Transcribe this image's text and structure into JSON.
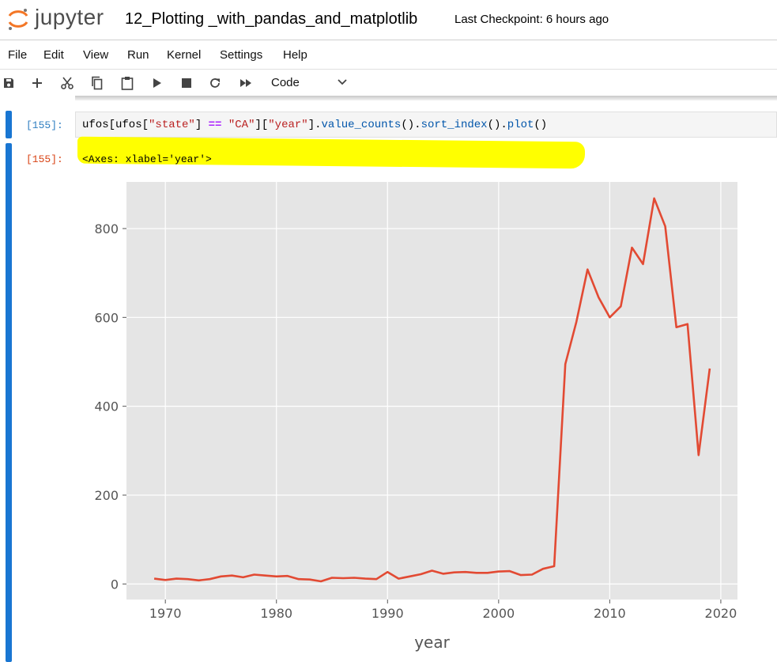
{
  "header": {
    "logo_text": "jupyter",
    "notebook_title": "12_Plotting _with_pandas_and_matplotlib",
    "checkpoint": "Last Checkpoint: 6 hours ago"
  },
  "menu": [
    "File",
    "Edit",
    "View",
    "Run",
    "Kernel",
    "Settings",
    "Help"
  ],
  "toolbar": {
    "icons": [
      "save-icon",
      "add-icon",
      "cut-icon",
      "copy-icon",
      "paste-icon",
      "run-icon",
      "stop-icon",
      "restart-icon",
      "run-all-icon"
    ],
    "cell_type": "Code"
  },
  "cell": {
    "in_prompt": "[155]:",
    "out_prompt": "[155]:",
    "code": {
      "p1": "ufos[ufos[",
      "s1": "\"state\"",
      "p2": "] ",
      "op": "==",
      "p3": " ",
      "s2": "\"CA\"",
      "p4": "][",
      "s3": "\"year\"",
      "p5": "].",
      "f1": "value_counts",
      "p6": "().",
      "f2": "sort_index",
      "p7": "().",
      "f3": "plot",
      "p8": "()"
    },
    "output_text": "<Axes: xlabel='year'>"
  },
  "colors": {
    "line": "#e24a33",
    "plot_bg": "#e5e5e5",
    "grid": "#ffffff",
    "highlight": "#ffff00",
    "cell_bar": "#1976d2"
  },
  "chart_data": {
    "type": "line",
    "title": "",
    "xlabel": "year",
    "ylabel": "",
    "xlim": [
      1966.5,
      2021.5
    ],
    "ylim": [
      -35,
      905
    ],
    "xticks": [
      1970,
      1980,
      1990,
      2000,
      2010,
      2020
    ],
    "yticks": [
      0,
      200,
      400,
      600,
      800
    ],
    "grid": true,
    "x": [
      1969,
      1970,
      1971,
      1972,
      1973,
      1974,
      1975,
      1976,
      1977,
      1978,
      1979,
      1980,
      1981,
      1982,
      1983,
      1984,
      1985,
      1986,
      1987,
      1988,
      1989,
      1990,
      1991,
      1992,
      1993,
      1994,
      1995,
      1996,
      1997,
      1998,
      1999,
      2000,
      2001,
      2002,
      2003,
      2004,
      2005,
      2006,
      2007,
      2008,
      2009,
      2010,
      2011,
      2012,
      2013,
      2014,
      2015,
      2016,
      2017,
      2018,
      2019
    ],
    "values": [
      12,
      9,
      12,
      11,
      8,
      11,
      17,
      19,
      15,
      21,
      19,
      17,
      18,
      11,
      10,
      6,
      14,
      13,
      14,
      12,
      11,
      27,
      12,
      17,
      22,
      30,
      23,
      26,
      27,
      25,
      25,
      28,
      29,
      20,
      21,
      34,
      40,
      495,
      590,
      708,
      645,
      600,
      625,
      757,
      720,
      868,
      805,
      578,
      585,
      290,
      485
    ]
  }
}
